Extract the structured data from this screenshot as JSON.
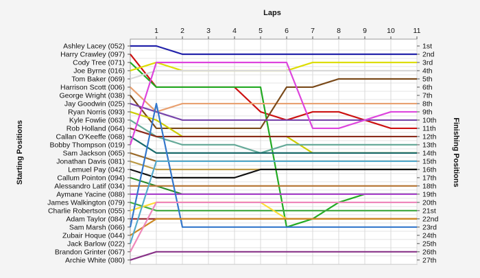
{
  "chart_data": {
    "type": "line",
    "title": "",
    "xlabel": "Laps",
    "ylabel_left": "Starting Positions",
    "ylabel_right": "Finishing Positions",
    "laps": [
      1,
      2,
      3,
      4,
      5,
      6,
      7,
      8,
      9,
      10,
      11
    ],
    "finish_labels": [
      "1st",
      "2nd",
      "3rd",
      "4th",
      "5th",
      "6th",
      "7th",
      "8th",
      "9th",
      "10th",
      "11th",
      "12th",
      "13th",
      "14th",
      "15th",
      "16th",
      "17th",
      "18th",
      "19th",
      "20th",
      "21st",
      "22nd",
      "23rd",
      "24th",
      "25th",
      "26th",
      "27th"
    ],
    "grid": true,
    "series": [
      {
        "name": "Ashley Lacey (052)",
        "color": "#2222aa",
        "positions": [
          1,
          1,
          2,
          2,
          2,
          2,
          2,
          2,
          2,
          2,
          2,
          2
        ]
      },
      {
        "name": "Harry Crawley (097)",
        "color": "#cc1111",
        "positions": [
          2,
          6,
          6,
          6,
          6,
          9,
          10,
          9,
          9,
          10,
          11,
          11
        ]
      },
      {
        "name": "Cody Tree (071)",
        "color": "#22aa22",
        "positions": [
          3,
          6,
          6,
          6,
          6,
          6,
          23,
          22,
          20,
          19,
          19,
          19
        ]
      },
      {
        "name": "Joe Byrne (016)",
        "color": "#dddd00",
        "positions": [
          4,
          3,
          4,
          4,
          4,
          4,
          4,
          3,
          3,
          3,
          3,
          3
        ]
      },
      {
        "name": "Tom Baker (069)",
        "color": "#d8d8d8",
        "positions": [
          5,
          4,
          4,
          4,
          4,
          4,
          4,
          4,
          4,
          4,
          4,
          4
        ]
      },
      {
        "name": "Harrison Scott (006)",
        "color": "#e8a070",
        "positions": [
          6,
          9,
          8,
          8,
          8,
          8,
          8,
          8,
          8,
          8,
          8,
          8
        ]
      },
      {
        "name": "George Wright (038)",
        "color": "#7a4a1a",
        "positions": [
          7,
          11,
          11,
          11,
          11,
          11,
          6,
          6,
          5,
          5,
          5,
          5
        ]
      },
      {
        "name": "Jay Goodwin (025)",
        "color": "#7744aa",
        "positions": [
          8,
          9,
          10,
          10,
          10,
          10,
          10,
          10,
          10,
          10,
          10,
          10
        ]
      },
      {
        "name": "Ryan Norris (093)",
        "color": "#cccc00",
        "positions": [
          9,
          10,
          12,
          12,
          12,
          12,
          12,
          14,
          14,
          14,
          14,
          14
        ]
      },
      {
        "name": "Kyle Fowlie (063)",
        "color": "#66aa99",
        "positions": [
          10,
          12,
          13,
          13,
          13,
          14,
          13,
          13,
          13,
          13,
          13,
          13
        ]
      },
      {
        "name": "Rob Holland (064)",
        "color": "#8a2a1a",
        "positions": [
          11,
          12,
          12,
          12,
          12,
          12,
          12,
          12,
          12,
          12,
          12,
          12
        ]
      },
      {
        "name": "Callan O'Keeffe (068)",
        "color": "#1a6a6a",
        "positions": [
          12,
          14,
          14,
          14,
          14,
          14,
          14,
          14,
          14,
          14,
          14,
          14
        ]
      },
      {
        "name": "Bobby Thompson (019)",
        "color": "#dd44dd",
        "positions": [
          13,
          3,
          3,
          3,
          3,
          3,
          3,
          11,
          11,
          10,
          9,
          9
        ]
      },
      {
        "name": "Sam Jackson (065)",
        "color": "#9a6a2a",
        "positions": [
          14,
          15,
          15,
          15,
          15,
          15,
          15,
          15,
          15,
          15,
          15,
          15
        ]
      },
      {
        "name": "Jonathan Davis (081)",
        "color": "#bb9944",
        "positions": [
          15,
          16,
          16,
          16,
          16,
          16,
          16,
          16,
          16,
          16,
          16,
          16
        ]
      },
      {
        "name": "Lemuel Pay (042)",
        "color": "#111111",
        "positions": [
          16,
          17,
          17,
          17,
          17,
          16,
          16,
          16,
          16,
          16,
          16,
          16
        ]
      },
      {
        "name": "Callum Pointon (094)",
        "color": "#2a8a2a",
        "positions": [
          17,
          18,
          19,
          19,
          19,
          19,
          19,
          19,
          19,
          19,
          19,
          19
        ]
      },
      {
        "name": "Alessandro Latif (034)",
        "color": "#b87a3a",
        "positions": [
          18,
          18,
          18,
          18,
          18,
          18,
          18,
          18,
          18,
          18,
          18,
          18
        ]
      },
      {
        "name": "Aymane Yacine (088)",
        "color": "#aa44cc",
        "positions": [
          19,
          19,
          19,
          19,
          19,
          19,
          19,
          19,
          19,
          19,
          19,
          19
        ]
      },
      {
        "name": "James Walkington (079)",
        "color": "#44aa44",
        "positions": [
          20,
          21,
          21,
          21,
          21,
          21,
          21,
          21,
          21,
          21,
          21,
          21
        ]
      },
      {
        "name": "Charlie Robertson (055)",
        "color": "#ffdd33",
        "positions": [
          21,
          20,
          20,
          20,
          20,
          20,
          22,
          22,
          22,
          22,
          22,
          22
        ]
      },
      {
        "name": "Adam Taylor (084)",
        "color": "#993333",
        "positions": [
          22,
          22,
          22,
          22,
          22,
          22,
          22,
          22,
          22,
          22,
          22,
          22
        ]
      },
      {
        "name": "Sam Marsh (066)",
        "color": "#3377cc",
        "positions": [
          23,
          8,
          23,
          23,
          23,
          23,
          23,
          23,
          23,
          23,
          23,
          23
        ]
      },
      {
        "name": "Zubair Hoque (044)",
        "color": "#cc8822",
        "positions": [
          24,
          22,
          22,
          22,
          22,
          22,
          22,
          22,
          22,
          22,
          22,
          22
        ]
      },
      {
        "name": "Jack Barlow (022)",
        "color": "#55aacc",
        "positions": [
          25,
          15,
          15,
          15,
          15,
          15,
          15,
          15,
          15,
          15,
          15,
          15
        ]
      },
      {
        "name": "Brandon Grinter (067)",
        "color": "#ee88bb",
        "positions": [
          26,
          20,
          20,
          20,
          20,
          20,
          20,
          20,
          20,
          20,
          20,
          20
        ]
      },
      {
        "name": "Archie White (080)",
        "color": "#883388",
        "positions": [
          27,
          26,
          26,
          26,
          26,
          26,
          26,
          26,
          26,
          26,
          26,
          26
        ]
      }
    ]
  }
}
